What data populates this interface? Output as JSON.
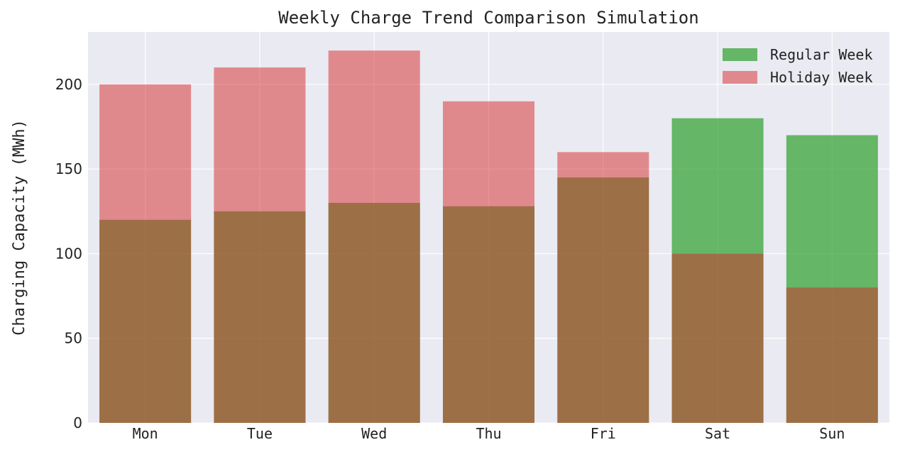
{
  "chart_data": {
    "type": "bar",
    "title": "Weekly Charge Trend Comparison Simulation",
    "xlabel": "",
    "ylabel": "Charging Capacity (MWh)",
    "categories": [
      "Mon",
      "Tue",
      "Wed",
      "Thu",
      "Fri",
      "Sat",
      "Sun"
    ],
    "series": [
      {
        "name": "Regular Week",
        "values": [
          120,
          125,
          130,
          128,
          145,
          180,
          170
        ],
        "color": "#2ca02c",
        "alpha": 0.7
      },
      {
        "name": "Holiday Week",
        "values": [
          200,
          210,
          220,
          190,
          160,
          100,
          80
        ],
        "color": "#d62728",
        "alpha": 0.5
      }
    ],
    "ylim": [
      0,
      231
    ],
    "yticks": [
      0,
      50,
      100,
      150,
      200
    ],
    "grid": true,
    "legend_position": "top-right",
    "background": "#eaeaf2",
    "overlay": true
  }
}
